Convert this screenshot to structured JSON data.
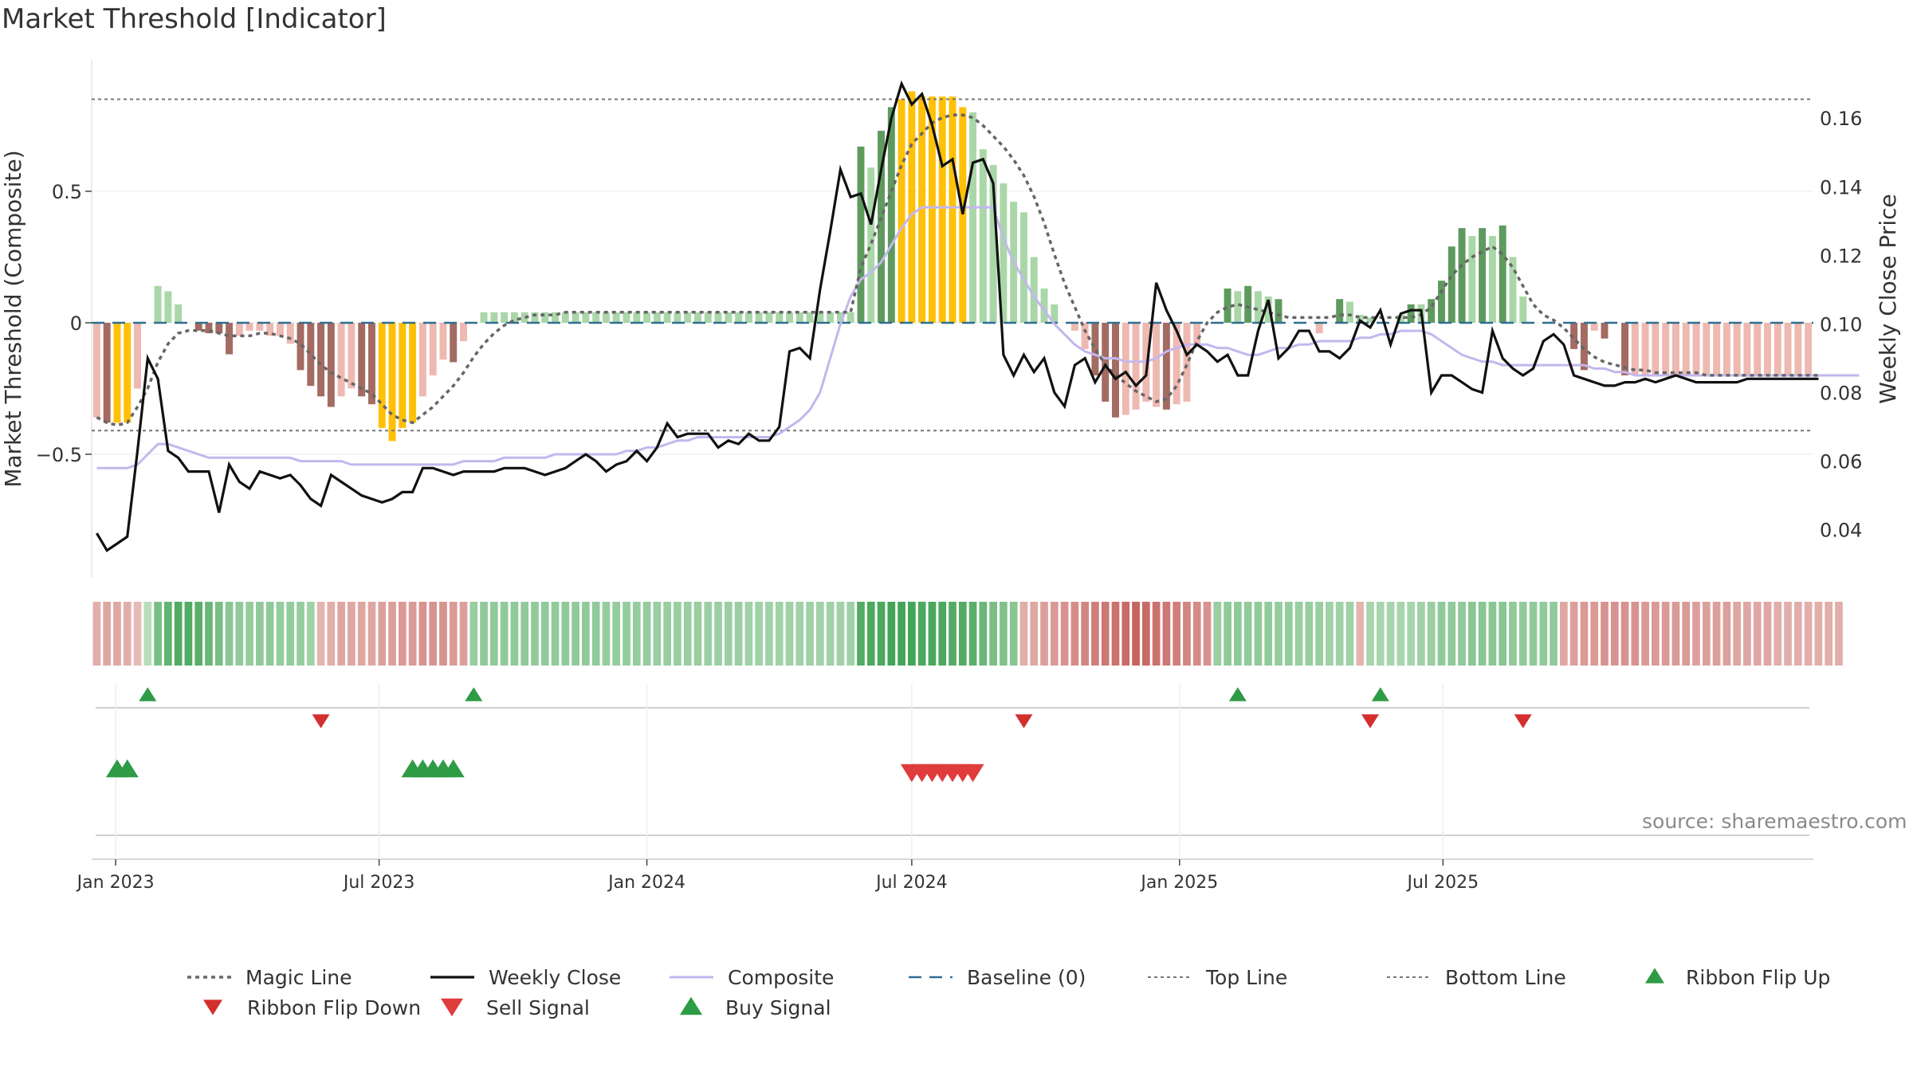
{
  "title": "Market Threshold [Indicator]",
  "source_note": "source: sharemaestro.com",
  "colors": {
    "bar_strong_up": "#5e9a5e",
    "bar_weak_up": "#aad7a8",
    "bar_strong_down": "#a46b63",
    "bar_weak_down": "#eeb9b0",
    "bar_extreme": "#ffc107",
    "close": "#111111",
    "composite": "#c3b7ee",
    "magic": "#666666",
    "baseline": "#2f6f8f",
    "threshold": "#777777",
    "ribbon_flip_up": "#2e9b45",
    "ribbon_flip_down": "#d32f2f",
    "buy": "#2e9b45",
    "sell": "#e03c3c"
  },
  "chart_data": {
    "type": "bar",
    "x_start": "2022-12-19",
    "x_step_days": 7,
    "composite_ylabel": "Market Threshold (Composite)",
    "price_ylabel": "Weekly Close Price",
    "composite_ylim": [
      -0.97,
      1.0
    ],
    "price_ylim": [
      0.026,
      0.177
    ],
    "composite_ticks": [
      "0.5",
      "0",
      "−0.5"
    ],
    "composite_tick_values": [
      0.5,
      0,
      -0.5
    ],
    "price_ticks": [
      "0.16",
      "0.14",
      "0.12",
      "0.10",
      "0.08",
      "0.06",
      "0.04"
    ],
    "price_tick_values": [
      0.16,
      0.14,
      0.12,
      0.1,
      0.08,
      0.06,
      0.04
    ],
    "x_ticks": [
      {
        "label": "Jan 2023",
        "date": "2023-01-01"
      },
      {
        "label": "Jul 2023",
        "date": "2023-07-01"
      },
      {
        "label": "Jan 2024",
        "date": "2024-01-01"
      },
      {
        "label": "Jul 2024",
        "date": "2024-07-01"
      },
      {
        "label": "Jan 2025",
        "date": "2025-01-01"
      },
      {
        "label": "Jul 2025",
        "date": "2025-07-01"
      }
    ],
    "top_line": 0.85,
    "bottom_line": -0.41,
    "baseline": 0,
    "composite_bars": [
      -0.36,
      -0.38,
      -0.38,
      -0.38,
      -0.25,
      0.0,
      0.14,
      0.12,
      0.07,
      0.0,
      -0.03,
      -0.04,
      -0.04,
      -0.12,
      -0.05,
      -0.03,
      -0.03,
      -0.05,
      -0.05,
      -0.08,
      -0.18,
      -0.24,
      -0.28,
      -0.32,
      -0.28,
      -0.25,
      -0.28,
      -0.31,
      -0.4,
      -0.45,
      -0.4,
      -0.38,
      -0.28,
      -0.2,
      -0.14,
      -0.15,
      -0.07,
      0.0,
      0.04,
      0.04,
      0.04,
      0.04,
      0.04,
      0.04,
      0.04,
      0.04,
      0.04,
      0.04,
      0.04,
      0.04,
      0.04,
      0.04,
      0.04,
      0.04,
      0.04,
      0.04,
      0.04,
      0.04,
      0.04,
      0.04,
      0.04,
      0.04,
      0.04,
      0.04,
      0.04,
      0.04,
      0.04,
      0.04,
      0.04,
      0.04,
      0.04,
      0.04,
      0.04,
      0.04,
      0.04,
      0.67,
      0.59,
      0.73,
      0.82,
      0.85,
      0.88,
      0.86,
      0.86,
      0.86,
      0.86,
      0.82,
      0.8,
      0.66,
      0.6,
      0.53,
      0.46,
      0.42,
      0.25,
      0.13,
      0.07,
      0.0,
      -0.03,
      -0.1,
      -0.2,
      -0.3,
      -0.36,
      -0.35,
      -0.33,
      -0.3,
      -0.32,
      -0.33,
      -0.31,
      -0.3,
      -0.08,
      0.0,
      0.0,
      0.13,
      0.12,
      0.14,
      0.12,
      0.1,
      0.09,
      0.0,
      0.0,
      0.0,
      -0.04,
      0.0,
      0.09,
      0.08,
      0.03,
      0.02,
      0.0,
      0.0,
      0.03,
      0.07,
      0.07,
      0.09,
      0.16,
      0.29,
      0.36,
      0.33,
      0.36,
      0.33,
      0.37,
      0.25,
      0.1,
      0.0,
      0.0,
      0.0,
      0.0,
      -0.1,
      -0.18,
      -0.03,
      -0.06,
      0.0,
      -0.2,
      -0.2,
      -0.2,
      -0.2,
      -0.2,
      -0.2,
      -0.2,
      -0.2,
      -0.2,
      -0.2,
      -0.2,
      -0.2,
      -0.2,
      -0.2,
      -0.2,
      -0.2,
      -0.2,
      -0.2,
      -0.2
    ],
    "bar_classes": [
      "wd",
      "sd",
      "ex",
      "ex",
      "wd",
      "n",
      "wu",
      "wu",
      "wu",
      "n",
      "sd",
      "sd",
      "sd",
      "sd",
      "wd",
      "wd",
      "wd",
      "wd",
      "wd",
      "wd",
      "sd",
      "sd",
      "sd",
      "sd",
      "wd",
      "wd",
      "sd",
      "sd",
      "ex",
      "ex",
      "ex",
      "ex",
      "wd",
      "wd",
      "wd",
      "sd",
      "wd",
      "n",
      "wu",
      "wu",
      "wu",
      "wu",
      "wu",
      "wu",
      "wu",
      "wu",
      "wu",
      "wu",
      "wu",
      "wu",
      "wu",
      "wu",
      "wu",
      "wu",
      "wu",
      "wu",
      "wu",
      "wu",
      "wu",
      "wu",
      "wu",
      "wu",
      "wu",
      "wu",
      "wu",
      "wu",
      "wu",
      "wu",
      "wu",
      "wu",
      "wu",
      "wu",
      "wu",
      "wu",
      "wu",
      "su",
      "wu",
      "su",
      "su",
      "ex",
      "ex",
      "ex",
      "ex",
      "ex",
      "ex",
      "ex",
      "wu",
      "wu",
      "wu",
      "wu",
      "wu",
      "wu",
      "wu",
      "wu",
      "wu",
      "n",
      "wd",
      "wd",
      "sd",
      "sd",
      "sd",
      "wd",
      "wd",
      "wd",
      "wd",
      "sd",
      "wd",
      "wd",
      "wd",
      "n",
      "n",
      "su",
      "wu",
      "su",
      "wu",
      "wu",
      "su",
      "n",
      "n",
      "n",
      "wd",
      "n",
      "su",
      "wu",
      "wu",
      "wu",
      "n",
      "n",
      "wu",
      "su",
      "wu",
      "su",
      "su",
      "su",
      "su",
      "wu",
      "su",
      "wu",
      "su",
      "wu",
      "wu",
      "n",
      "n",
      "n",
      "n",
      "sd",
      "sd",
      "wd",
      "sd",
      "n",
      "sd",
      "wd",
      "wd",
      "wd",
      "wd",
      "wd",
      "wd",
      "wd",
      "wd",
      "wd",
      "wd",
      "wd",
      "wd",
      "wd",
      "wd",
      "wd",
      "wd",
      "wd",
      "wd",
      "wd",
      "wd"
    ],
    "weekly_close": [
      0.039,
      0.034,
      0.036,
      0.038,
      0.063,
      0.09,
      0.084,
      0.063,
      0.061,
      0.057,
      0.057,
      0.057,
      0.045,
      0.059,
      0.054,
      0.052,
      0.057,
      0.056,
      0.055,
      0.056,
      0.053,
      0.049,
      0.047,
      0.056,
      0.054,
      0.052,
      0.05,
      0.049,
      0.048,
      0.049,
      0.051,
      0.051,
      0.058,
      0.058,
      0.057,
      0.056,
      0.057,
      0.057,
      0.057,
      0.057,
      0.058,
      0.058,
      0.058,
      0.057,
      0.056,
      0.057,
      0.058,
      0.06,
      0.062,
      0.06,
      0.057,
      0.059,
      0.06,
      0.063,
      0.06,
      0.064,
      0.071,
      0.067,
      0.068,
      0.068,
      0.068,
      0.064,
      0.066,
      0.065,
      0.068,
      0.066,
      0.066,
      0.07,
      0.092,
      0.093,
      0.09,
      0.11,
      0.127,
      0.145,
      0.137,
      0.138,
      0.129,
      0.145,
      0.16,
      0.17,
      0.164,
      0.167,
      0.158,
      0.146,
      0.148,
      0.132,
      0.147,
      0.148,
      0.141,
      0.091,
      0.085,
      0.091,
      0.086,
      0.09,
      0.08,
      0.076,
      0.088,
      0.09,
      0.083,
      0.088,
      0.084,
      0.086,
      0.082,
      0.085,
      0.112,
      0.104,
      0.098,
      0.091,
      0.094,
      0.092,
      0.089,
      0.091,
      0.085,
      0.085,
      0.098,
      0.107,
      0.09,
      0.093,
      0.098,
      0.098,
      0.092,
      0.092,
      0.09,
      0.093,
      0.101,
      0.099,
      0.104,
      0.094,
      0.103,
      0.104,
      0.104,
      0.08,
      0.085,
      0.085,
      0.083,
      0.081,
      0.08,
      0.098,
      0.09,
      0.087,
      0.085,
      0.087,
      0.095,
      0.097,
      0.094,
      0.085,
      0.084,
      0.083,
      0.082,
      0.082,
      0.083,
      0.083,
      0.084,
      0.083,
      0.084,
      0.085,
      0.084,
      0.083,
      0.083,
      0.083,
      0.083,
      0.083,
      0.084,
      0.084,
      0.084,
      0.084,
      0.084,
      0.084,
      0.084,
      0.084
    ],
    "composite_line": [
      0.058,
      0.058,
      0.058,
      0.058,
      0.059,
      0.062,
      0.065,
      0.065,
      0.064,
      0.063,
      0.062,
      0.061,
      0.061,
      0.061,
      0.061,
      0.061,
      0.061,
      0.061,
      0.061,
      0.061,
      0.06,
      0.06,
      0.06,
      0.06,
      0.06,
      0.059,
      0.059,
      0.059,
      0.059,
      0.059,
      0.059,
      0.059,
      0.059,
      0.059,
      0.059,
      0.059,
      0.06,
      0.06,
      0.06,
      0.06,
      0.061,
      0.061,
      0.061,
      0.061,
      0.061,
      0.062,
      0.062,
      0.062,
      0.062,
      0.062,
      0.062,
      0.062,
      0.063,
      0.063,
      0.064,
      0.064,
      0.065,
      0.066,
      0.066,
      0.067,
      0.067,
      0.067,
      0.067,
      0.067,
      0.067,
      0.067,
      0.067,
      0.068,
      0.07,
      0.072,
      0.075,
      0.08,
      0.09,
      0.1,
      0.108,
      0.113,
      0.115,
      0.118,
      0.123,
      0.128,
      0.132,
      0.134,
      0.134,
      0.134,
      0.134,
      0.134,
      0.134,
      0.134,
      0.134,
      0.125,
      0.118,
      0.113,
      0.108,
      0.104,
      0.1,
      0.097,
      0.094,
      0.092,
      0.091,
      0.09,
      0.09,
      0.089,
      0.089,
      0.089,
      0.09,
      0.092,
      0.093,
      0.094,
      0.094,
      0.094,
      0.093,
      0.093,
      0.092,
      0.091,
      0.091,
      0.092,
      0.093,
      0.093,
      0.094,
      0.094,
      0.095,
      0.095,
      0.095,
      0.095,
      0.096,
      0.096,
      0.097,
      0.097,
      0.098,
      0.098,
      0.098,
      0.097,
      0.095,
      0.093,
      0.091,
      0.09,
      0.089,
      0.089,
      0.088,
      0.088,
      0.088,
      0.088,
      0.088,
      0.088,
      0.088,
      0.088,
      0.088,
      0.087,
      0.087,
      0.086,
      0.086,
      0.085,
      0.085,
      0.085,
      0.085,
      0.085,
      0.085,
      0.085,
      0.085,
      0.085,
      0.085,
      0.085,
      0.085,
      0.085,
      0.085,
      0.085,
      0.085,
      0.085,
      0.085,
      0.085,
      0.085,
      0.085,
      0.085,
      0.085
    ],
    "magic_line": [
      -0.36,
      -0.38,
      -0.39,
      -0.38,
      -0.32,
      -0.25,
      -0.15,
      -0.08,
      -0.04,
      -0.03,
      -0.03,
      -0.03,
      -0.04,
      -0.05,
      -0.05,
      -0.05,
      -0.04,
      -0.04,
      -0.05,
      -0.06,
      -0.08,
      -0.12,
      -0.16,
      -0.19,
      -0.21,
      -0.23,
      -0.25,
      -0.27,
      -0.31,
      -0.35,
      -0.37,
      -0.38,
      -0.35,
      -0.32,
      -0.28,
      -0.24,
      -0.19,
      -0.13,
      -0.08,
      -0.04,
      -0.01,
      0.01,
      0.02,
      0.03,
      0.03,
      0.03,
      0.04,
      0.04,
      0.04,
      0.04,
      0.04,
      0.04,
      0.04,
      0.04,
      0.04,
      0.04,
      0.04,
      0.04,
      0.04,
      0.04,
      0.04,
      0.04,
      0.04,
      0.04,
      0.04,
      0.04,
      0.04,
      0.04,
      0.04,
      0.04,
      0.04,
      0.04,
      0.04,
      0.04,
      0.04,
      0.21,
      0.3,
      0.4,
      0.5,
      0.6,
      0.68,
      0.72,
      0.76,
      0.78,
      0.79,
      0.79,
      0.78,
      0.75,
      0.71,
      0.67,
      0.62,
      0.56,
      0.48,
      0.38,
      0.26,
      0.15,
      0.06,
      -0.03,
      -0.1,
      -0.16,
      -0.2,
      -0.23,
      -0.26,
      -0.28,
      -0.3,
      -0.29,
      -0.24,
      -0.16,
      -0.07,
      0.0,
      0.04,
      0.06,
      0.07,
      0.06,
      0.05,
      0.04,
      0.03,
      0.02,
      0.02,
      0.02,
      0.02,
      0.02,
      0.03,
      0.03,
      0.02,
      0.02,
      0.02,
      0.02,
      0.02,
      0.02,
      0.03,
      0.06,
      0.12,
      0.18,
      0.22,
      0.25,
      0.27,
      0.29,
      0.26,
      0.21,
      0.14,
      0.07,
      0.03,
      0.01,
      -0.02,
      -0.06,
      -0.1,
      -0.13,
      -0.15,
      -0.16,
      -0.17,
      -0.18,
      -0.18,
      -0.19,
      -0.19,
      -0.19,
      -0.19,
      -0.19,
      -0.2,
      -0.2,
      -0.2,
      -0.2,
      -0.2,
      -0.2,
      -0.2,
      -0.2,
      -0.2,
      -0.2,
      -0.2,
      -0.2
    ],
    "ribbon_values": [
      -0.3,
      -0.35,
      -0.35,
      -0.3,
      -0.2,
      0.2,
      0.6,
      0.75,
      0.85,
      0.85,
      0.8,
      0.7,
      0.6,
      0.5,
      0.45,
      0.42,
      0.45,
      0.45,
      0.42,
      0.42,
      0.42,
      0.35,
      -0.25,
      -0.3,
      -0.35,
      -0.35,
      -0.35,
      -0.35,
      -0.4,
      -0.4,
      -0.45,
      -0.45,
      -0.5,
      -0.5,
      -0.5,
      -0.45,
      -0.4,
      0.4,
      0.45,
      0.45,
      0.45,
      0.45,
      0.45,
      0.45,
      0.45,
      0.45,
      0.45,
      0.45,
      0.45,
      0.45,
      0.42,
      0.42,
      0.42,
      0.42,
      0.42,
      0.4,
      0.4,
      0.4,
      0.4,
      0.4,
      0.38,
      0.38,
      0.38,
      0.38,
      0.35,
      0.35,
      0.35,
      0.35,
      0.35,
      0.35,
      0.35,
      0.35,
      0.35,
      0.35,
      0.35,
      0.85,
      0.9,
      0.9,
      0.95,
      0.95,
      0.95,
      0.9,
      0.9,
      0.9,
      0.85,
      0.85,
      0.8,
      0.7,
      0.6,
      0.55,
      0.5,
      -0.3,
      -0.35,
      -0.4,
      -0.45,
      -0.5,
      -0.55,
      -0.6,
      -0.65,
      -0.7,
      -0.75,
      -0.8,
      -0.85,
      -0.8,
      -0.75,
      -0.7,
      -0.65,
      -0.6,
      -0.55,
      -0.5,
      0.4,
      0.45,
      0.45,
      0.45,
      0.45,
      0.45,
      0.42,
      0.42,
      0.4,
      0.4,
      0.4,
      0.35,
      0.35,
      0.35,
      -0.25,
      0.3,
      0.3,
      0.3,
      0.3,
      0.3,
      0.35,
      0.4,
      0.45,
      0.45,
      0.45,
      0.5,
      0.5,
      0.5,
      0.5,
      0.45,
      0.45,
      0.45,
      0.45,
      0.45,
      -0.35,
      -0.4,
      -0.45,
      -0.45,
      -0.5,
      -0.5,
      -0.5,
      -0.5,
      -0.45,
      -0.45,
      -0.45,
      -0.45,
      -0.45,
      -0.4,
      -0.4,
      -0.4,
      -0.4,
      -0.35,
      -0.35,
      -0.35,
      -0.35,
      -0.3,
      -0.3,
      -0.3,
      -0.3,
      -0.3,
      -0.3,
      -0.3
    ],
    "ribbon_flip_up_idx": [
      5,
      37,
      112,
      126
    ],
    "ribbon_flip_down_idx": [
      22,
      91,
      125,
      140
    ],
    "buy_signal_idx": [
      2,
      3,
      31,
      32,
      33,
      34,
      35
    ],
    "sell_signal_idx": [
      80,
      81,
      82,
      83,
      84,
      85,
      86
    ],
    "legend_placement": "bottom",
    "legend": [
      {
        "label": "Magic Line"
      },
      {
        "label": "Weekly Close"
      },
      {
        "label": "Composite"
      },
      {
        "label": "Baseline (0)"
      },
      {
        "label": "Top Line"
      },
      {
        "label": "Bottom Line"
      },
      {
        "label": "Ribbon Flip Up"
      },
      {
        "label": "Ribbon Flip Down"
      },
      {
        "label": "Sell Signal"
      },
      {
        "label": "Buy Signal"
      }
    ]
  }
}
